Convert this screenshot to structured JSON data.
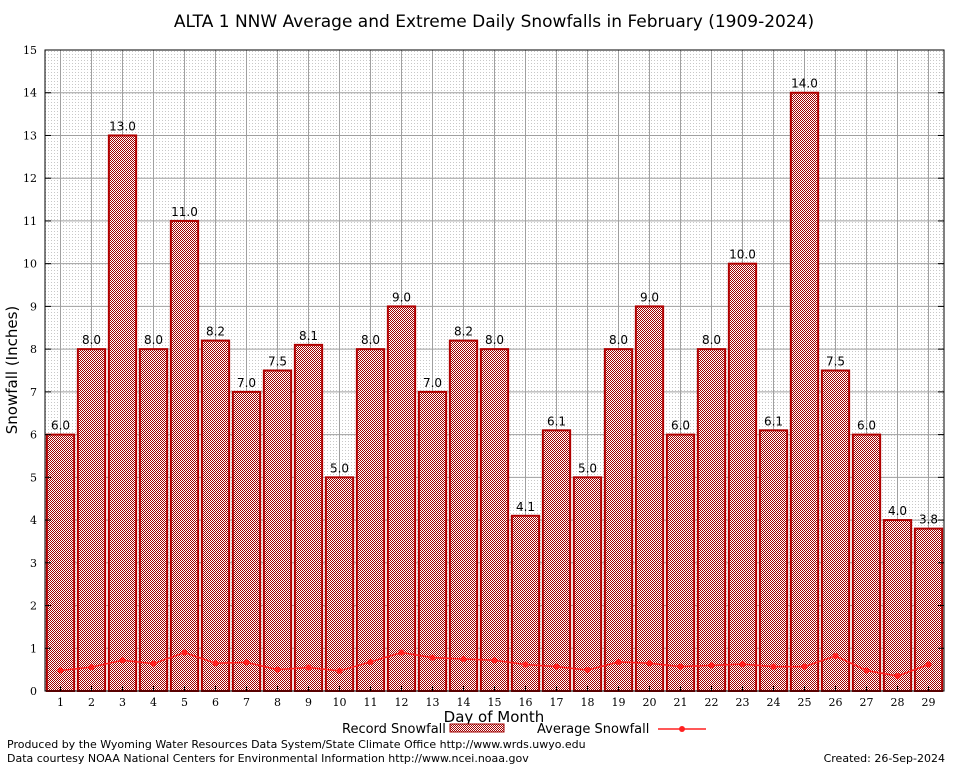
{
  "chart_data": {
    "type": "bar",
    "title": "ALTA 1 NNW Average and Extreme Daily Snowfalls in February (1909-2024)",
    "xlabel": "Day of Month",
    "ylabel": "Snowfall (Inches)",
    "ylim": [
      0,
      15
    ],
    "yticks": [
      "0",
      "1",
      "2",
      "3",
      "4",
      "5",
      "6",
      "7",
      "8",
      "9",
      "10",
      "11",
      "12",
      "13",
      "14",
      "15"
    ],
    "categories": [
      "1",
      "2",
      "3",
      "4",
      "5",
      "6",
      "7",
      "8",
      "9",
      "10",
      "11",
      "12",
      "13",
      "14",
      "15",
      "16",
      "17",
      "18",
      "19",
      "20",
      "21",
      "22",
      "23",
      "24",
      "25",
      "26",
      "27",
      "28",
      "29"
    ],
    "series": [
      {
        "name": "Record Snowfall",
        "kind": "bar",
        "color": "#b00000",
        "values": [
          6.0,
          8.0,
          13.0,
          8.0,
          11.0,
          8.2,
          7.0,
          7.5,
          8.1,
          5.0,
          8.0,
          9.0,
          7.0,
          8.2,
          8.0,
          4.1,
          6.1,
          5.0,
          8.0,
          9.0,
          6.0,
          8.0,
          10.0,
          6.1,
          14.0,
          7.5,
          6.0,
          4.0,
          3.8
        ],
        "labels": [
          "6.0",
          "8.0",
          "13.0",
          "8.0",
          "11.0",
          "8.2",
          "7.0",
          "7.5",
          "8.1",
          "5.0",
          "8.0",
          "9.0",
          "7.0",
          "8.2",
          "8.0",
          "4.1",
          "6.1",
          "5.0",
          "8.0",
          "9.0",
          "6.0",
          "8.0",
          "10.0",
          "6.1",
          "14.0",
          "7.5",
          "6.0",
          "4.0",
          "3.8"
        ]
      },
      {
        "name": "Average Snowfall",
        "kind": "line",
        "color": "#ff2020",
        "values": [
          0.48,
          0.56,
          0.72,
          0.64,
          0.9,
          0.65,
          0.67,
          0.5,
          0.55,
          0.47,
          0.68,
          0.9,
          0.78,
          0.75,
          0.72,
          0.62,
          0.57,
          0.49,
          0.68,
          0.65,
          0.57,
          0.6,
          0.63,
          0.57,
          0.57,
          0.82,
          0.48,
          0.35,
          0.62
        ]
      }
    ],
    "grid": true,
    "legend_position": "bottom"
  },
  "footer": {
    "produced_by": "Produced by the Wyoming Water Resources Data System/State Climate Office http://www.wrds.uwyo.edu",
    "courtesy": "Data courtesy NOAA National Centers for Environmental Information http://www.ncei.noaa.gov",
    "created": "Created:  26-Sep-2024"
  }
}
